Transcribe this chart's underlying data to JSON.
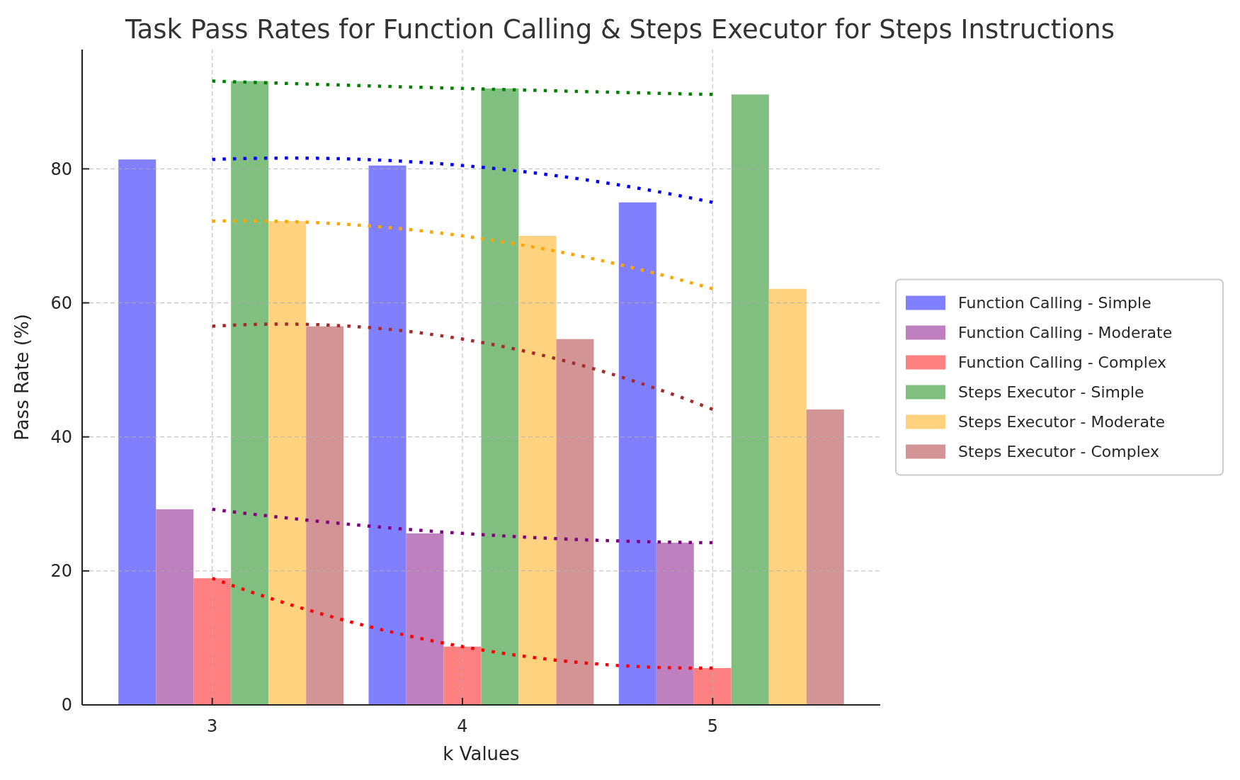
{
  "chart_data": {
    "type": "bar",
    "title": "Task Pass Rates for Function Calling & Steps Executor for Steps Instructions",
    "xlabel": "k Values",
    "ylabel": "Pass Rate (%)",
    "x": [
      3,
      4,
      5
    ],
    "xlim": [
      2.48,
      5.67
    ],
    "xticks": [
      3,
      4,
      5
    ],
    "ylim": [
      0,
      97.8
    ],
    "yticks": [
      0,
      20,
      40,
      60,
      80
    ],
    "grid": true,
    "legend": "right",
    "series": [
      {
        "name": "Function Calling - Simple",
        "color": "#8080ff",
        "values": [
          81.4,
          80.5,
          75.0
        ]
      },
      {
        "name": "Function Calling - Moderate",
        "color": "#bf80bf",
        "values": [
          29.2,
          25.6,
          24.2
        ]
      },
      {
        "name": "Function Calling - Complex",
        "color": "#ff8080",
        "values": [
          18.9,
          8.7,
          5.5
        ]
      },
      {
        "name": "Steps Executor - Simple",
        "color": "#80bf80",
        "values": [
          93.1,
          92.0,
          91.1
        ]
      },
      {
        "name": "Steps Executor - Moderate",
        "color": "#ffd280",
        "values": [
          72.2,
          70.0,
          62.1
        ]
      },
      {
        "name": "Steps Executor - Complex",
        "color": "#d29494",
        "values": [
          56.5,
          54.6,
          44.1
        ]
      },
      {
        "type": "line",
        "color": "#0000ff",
        "line_style": "dotted",
        "x": [
          3,
          4,
          5
        ],
        "values": [
          81.4,
          80.5,
          75.0
        ]
      },
      {
        "type": "line",
        "color": "#800080",
        "line_style": "dotted",
        "x": [
          3,
          4,
          5
        ],
        "values": [
          29.2,
          25.6,
          24.2
        ]
      },
      {
        "type": "line",
        "color": "#ff0000",
        "line_style": "dotted",
        "x": [
          3,
          4,
          5
        ],
        "values": [
          18.9,
          8.7,
          5.5
        ]
      },
      {
        "type": "line",
        "color": "#008000",
        "line_style": "dotted",
        "x": [
          3,
          4,
          5
        ],
        "values": [
          93.1,
          92.0,
          91.1
        ]
      },
      {
        "type": "line",
        "color": "#ffa500",
        "line_style": "dotted",
        "x": [
          3,
          4,
          5
        ],
        "values": [
          72.2,
          70.0,
          62.1
        ]
      },
      {
        "type": "line",
        "color": "#a52a2a",
        "line_style": "dotted",
        "x": [
          3,
          4,
          5
        ],
        "values": [
          56.5,
          54.6,
          44.1
        ]
      }
    ]
  }
}
